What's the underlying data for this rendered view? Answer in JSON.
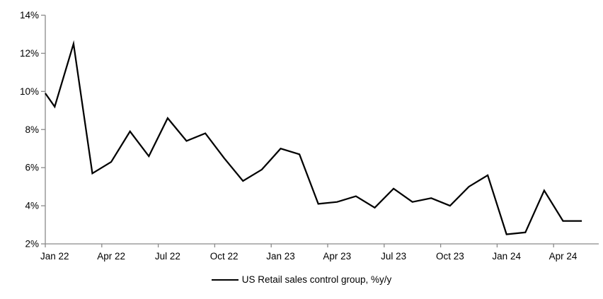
{
  "chart_data": {
    "type": "line",
    "title": "",
    "xlabel": "",
    "ylabel": "",
    "ylim": [
      2,
      14
    ],
    "grid": false,
    "legend_position": "bottom-center",
    "axis_color": "#8a8a8a",
    "line_color": "#000000",
    "y_tick_labels": [
      "14%",
      "12%",
      "10%",
      "8%",
      "6%",
      "4%",
      "2%"
    ],
    "y_tick_values": [
      14,
      12,
      10,
      8,
      6,
      4,
      2
    ],
    "x_tick_labels": [
      "Jan 22",
      "Apr 22",
      "Jul 22",
      "Oct 22",
      "Jan 23",
      "Apr 23",
      "Jul 23",
      "Oct 23",
      "Jan 24",
      "Apr 24"
    ],
    "months_per_x_tick": 3,
    "left_edge_clipped_value": 9.9,
    "series": [
      {
        "name": "US Retail sales control group, %y/y",
        "color": "#000000",
        "x": [
          "Jan 22",
          "Feb 22",
          "Mar 22",
          "Apr 22",
          "May 22",
          "Jun 22",
          "Jul 22",
          "Aug 22",
          "Sep 22",
          "Oct 22",
          "Nov 22",
          "Dec 22",
          "Jan 23",
          "Feb 23",
          "Mar 23",
          "Apr 23",
          "May 23",
          "Jun 23",
          "Jul 23",
          "Aug 23",
          "Sep 23",
          "Oct 23",
          "Nov 23",
          "Dec 23",
          "Jan 24",
          "Feb 24",
          "Mar 24",
          "Apr 24",
          "May 24"
        ],
        "values": [
          9.2,
          12.5,
          5.7,
          6.3,
          7.9,
          6.6,
          8.6,
          7.4,
          7.8,
          6.5,
          5.3,
          5.9,
          7.0,
          6.7,
          4.1,
          4.2,
          4.5,
          3.9,
          4.9,
          4.2,
          4.4,
          4.0,
          5.0,
          5.6,
          2.5,
          2.6,
          4.8,
          3.2,
          3.2
        ]
      }
    ]
  },
  "legend": {
    "label": "US Retail sales control group, %y/y"
  }
}
